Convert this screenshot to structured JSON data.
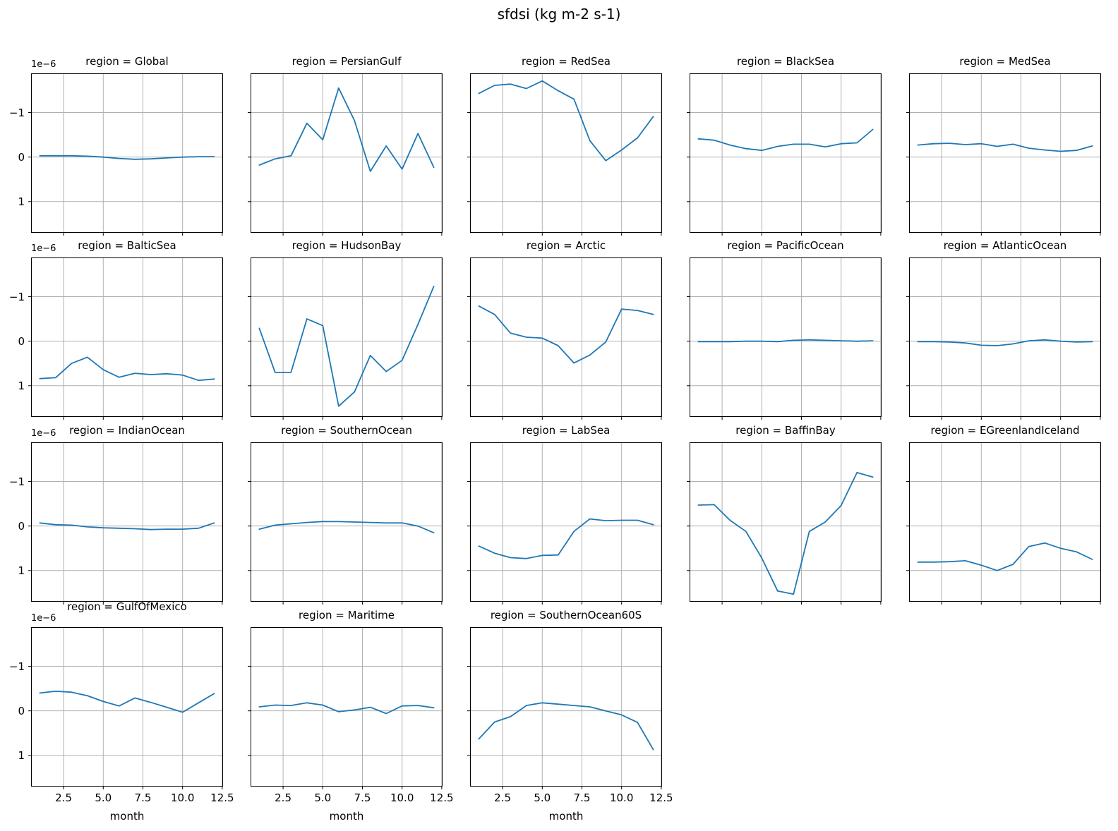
{
  "figure": {
    "suptitle": "sfdsi (kg m-2 s-1)"
  },
  "chart_data": {
    "type": "line",
    "title": "sfdsi (kg m-2 s-1)",
    "xlabel": "month",
    "x": [
      1,
      2,
      3,
      4,
      5,
      6,
      7,
      8,
      9,
      10,
      11,
      12
    ],
    "x_tick_labels": [
      "2.5",
      "5.0",
      "7.5",
      "10.0",
      "12.5"
    ],
    "x_tick_values": [
      2.5,
      5.0,
      7.5,
      10.0,
      12.5
    ],
    "xlim": [
      0.45,
      12.55
    ],
    "y_tick_labels": [
      "−1",
      "0",
      "1"
    ],
    "y_tick_values": [
      -1,
      0,
      1
    ],
    "y_offset_label": "1e−6",
    "ylim": [
      1.7,
      -1.88
    ],
    "y_axis_inverted": true,
    "units_scale": "1e-6",
    "grid": true,
    "line_color": "#1f77b4",
    "grid_color": "#b0b0b0",
    "axis_color": "#000000",
    "facet_title_prefix": "region = ",
    "facets": [
      {
        "region": "Global",
        "label": "region = Global",
        "values": [
          -0.03,
          -0.03,
          -0.03,
          -0.02,
          0.0,
          0.03,
          0.05,
          0.04,
          0.02,
          0.0,
          -0.01,
          -0.01
        ]
      },
      {
        "region": "PersianGulf",
        "label": "region = PersianGulf",
        "values": [
          0.18,
          0.04,
          -0.03,
          -0.76,
          -0.39,
          -1.55,
          -0.82,
          0.32,
          -0.25,
          0.27,
          -0.53,
          0.23
        ]
      },
      {
        "region": "RedSea",
        "label": "region = RedSea",
        "values": [
          -1.43,
          -1.61,
          -1.64,
          -1.54,
          -1.71,
          -1.49,
          -1.3,
          -0.37,
          0.08,
          -0.16,
          -0.43,
          -0.91
        ]
      },
      {
        "region": "BlackSea",
        "label": "region = BlackSea",
        "values": [
          -0.41,
          -0.38,
          -0.27,
          -0.19,
          -0.15,
          -0.24,
          -0.29,
          -0.29,
          -0.23,
          -0.3,
          -0.32,
          -0.62
        ]
      },
      {
        "region": "MedSea",
        "label": "region = MedSea",
        "values": [
          -0.27,
          -0.3,
          -0.31,
          -0.28,
          -0.3,
          -0.24,
          -0.29,
          -0.2,
          -0.16,
          -0.13,
          -0.15,
          -0.25
        ]
      },
      {
        "region": "BalticSea",
        "label": "region = BalticSea",
        "values": [
          0.84,
          0.82,
          0.5,
          0.36,
          0.64,
          0.81,
          0.72,
          0.75,
          0.73,
          0.76,
          0.88,
          0.85
        ]
      },
      {
        "region": "HudsonBay",
        "label": "region = HudsonBay",
        "values": [
          -0.29,
          0.7,
          0.7,
          -0.5,
          -0.35,
          1.46,
          1.14,
          0.32,
          0.68,
          0.43,
          -0.38,
          -1.23
        ]
      },
      {
        "region": "Arctic",
        "label": "region = Arctic",
        "values": [
          -0.79,
          -0.6,
          -0.18,
          -0.09,
          -0.07,
          0.1,
          0.49,
          0.31,
          0.02,
          -0.72,
          -0.69,
          -0.6
        ]
      },
      {
        "region": "PacificOcean",
        "label": "region = PacificOcean",
        "values": [
          0.01,
          0.01,
          0.01,
          0.0,
          0.0,
          0.01,
          -0.02,
          -0.03,
          -0.02,
          -0.01,
          0.0,
          -0.01
        ]
      },
      {
        "region": "AtlanticOcean",
        "label": "region = AtlanticOcean",
        "values": [
          0.01,
          0.01,
          0.02,
          0.04,
          0.09,
          0.1,
          0.06,
          -0.01,
          -0.03,
          0.0,
          0.02,
          0.01
        ]
      },
      {
        "region": "IndianOcean",
        "label": "region = IndianOcean",
        "values": [
          -0.07,
          -0.03,
          -0.02,
          0.02,
          0.04,
          0.05,
          0.06,
          0.08,
          0.07,
          0.07,
          0.05,
          -0.07
        ]
      },
      {
        "region": "SouthernOcean",
        "label": "region = SouthernOcean",
        "values": [
          0.07,
          -0.02,
          -0.05,
          -0.08,
          -0.1,
          -0.1,
          -0.09,
          -0.08,
          -0.07,
          -0.07,
          0.0,
          0.15
        ]
      },
      {
        "region": "LabSea",
        "label": "region = LabSea",
        "values": [
          0.45,
          0.61,
          0.71,
          0.73,
          0.66,
          0.65,
          0.12,
          -0.16,
          -0.12,
          -0.13,
          -0.13,
          -0.03
        ]
      },
      {
        "region": "BaffinBay",
        "label": "region = BaffinBay",
        "values": [
          -0.47,
          -0.48,
          -0.13,
          0.12,
          0.72,
          1.46,
          1.53,
          0.12,
          -0.09,
          -0.46,
          -1.2,
          -1.1
        ]
      },
      {
        "region": "EGreenlandIceland",
        "label": "region = EGreenlandIceland",
        "values": [
          0.81,
          0.81,
          0.8,
          0.78,
          0.88,
          1.0,
          0.86,
          0.46,
          0.38,
          0.5,
          0.58,
          0.75
        ]
      },
      {
        "region": "GulfOfMexico",
        "label": "region = GulfOfMexico",
        "values": [
          -0.4,
          -0.44,
          -0.42,
          -0.34,
          -0.21,
          -0.11,
          -0.29,
          -0.19,
          -0.08,
          0.03,
          -0.18,
          -0.39
        ]
      },
      {
        "region": "Maritime",
        "label": "region = Maritime",
        "values": [
          -0.09,
          -0.13,
          -0.12,
          -0.18,
          -0.13,
          0.02,
          -0.02,
          -0.08,
          0.06,
          -0.11,
          -0.12,
          -0.07
        ]
      },
      {
        "region": "SouthernOcean60S",
        "label": "region = SouthernOcean60S",
        "values": [
          0.63,
          0.25,
          0.13,
          -0.12,
          -0.18,
          -0.15,
          -0.12,
          -0.09,
          0.0,
          0.09,
          0.26,
          0.87
        ]
      }
    ]
  }
}
